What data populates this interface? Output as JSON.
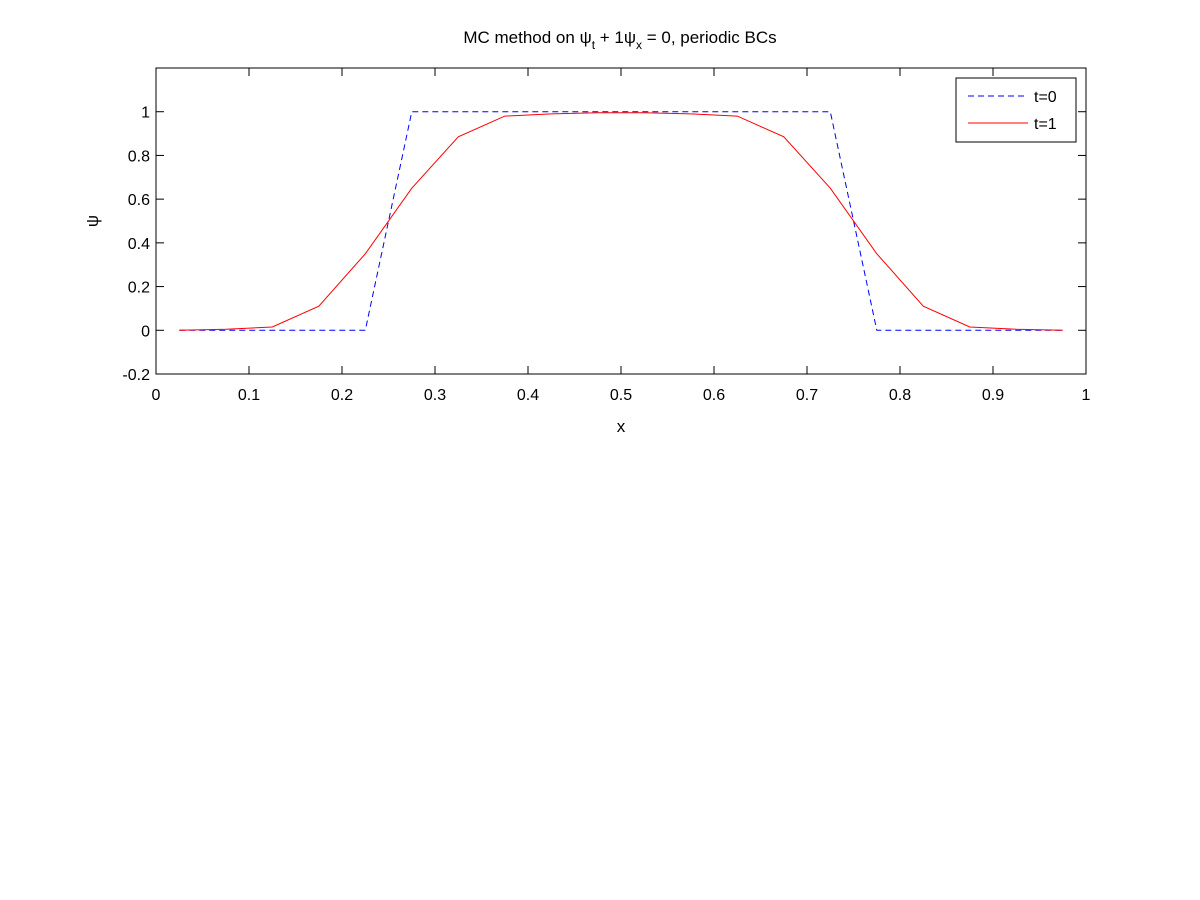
{
  "chart_data": {
    "type": "line",
    "title": {
      "prefix": "MC method on ",
      "sym1": "ψ",
      "sub1": "t",
      "mid": " + 1",
      "sym2": "ψ",
      "sub2": "x",
      "suffix": " = 0, periodic BCs"
    },
    "xlabel": "x",
    "ylabel": "ψ",
    "xlim": [
      0,
      1
    ],
    "ylim": [
      -0.2,
      1.2
    ],
    "xticks": [
      0,
      0.1,
      0.2,
      0.3,
      0.4,
      0.5,
      0.6,
      0.7,
      0.8,
      0.9,
      1
    ],
    "xtick_labels": [
      "0",
      "0.1",
      "0.2",
      "0.3",
      "0.4",
      "0.5",
      "0.6",
      "0.7",
      "0.8",
      "0.9",
      "1"
    ],
    "yticks": [
      -0.2,
      0,
      0.2,
      0.4,
      0.6,
      0.8,
      1
    ],
    "ytick_labels": [
      "-0.2",
      "0",
      "0.2",
      "0.4",
      "0.6",
      "0.8",
      "1"
    ],
    "grid": false,
    "legend_position": "top-right",
    "series": [
      {
        "name": "t=0",
        "color": "#0000ff",
        "style": "dashed",
        "x": [
          0.025,
          0.075,
          0.125,
          0.175,
          0.225,
          0.275,
          0.325,
          0.375,
          0.425,
          0.475,
          0.525,
          0.575,
          0.625,
          0.675,
          0.725,
          0.775,
          0.825,
          0.875,
          0.925,
          0.975
        ],
        "y": [
          0,
          0,
          0,
          0,
          0,
          1,
          1,
          1,
          1,
          1,
          1,
          1,
          1,
          1,
          1,
          0,
          0,
          0,
          0,
          0
        ]
      },
      {
        "name": "t=1",
        "color": "#ff0000",
        "style": "solid",
        "x": [
          0.025,
          0.075,
          0.125,
          0.175,
          0.225,
          0.275,
          0.325,
          0.375,
          0.425,
          0.475,
          0.525,
          0.575,
          0.625,
          0.675,
          0.725,
          0.775,
          0.825,
          0.875,
          0.925,
          0.975
        ],
        "y": [
          0.0,
          0.005,
          0.015,
          0.11,
          0.35,
          0.65,
          0.885,
          0.98,
          0.99,
          0.995,
          0.995,
          0.99,
          0.98,
          0.885,
          0.65,
          0.35,
          0.11,
          0.015,
          0.005,
          0.0
        ]
      }
    ]
  }
}
